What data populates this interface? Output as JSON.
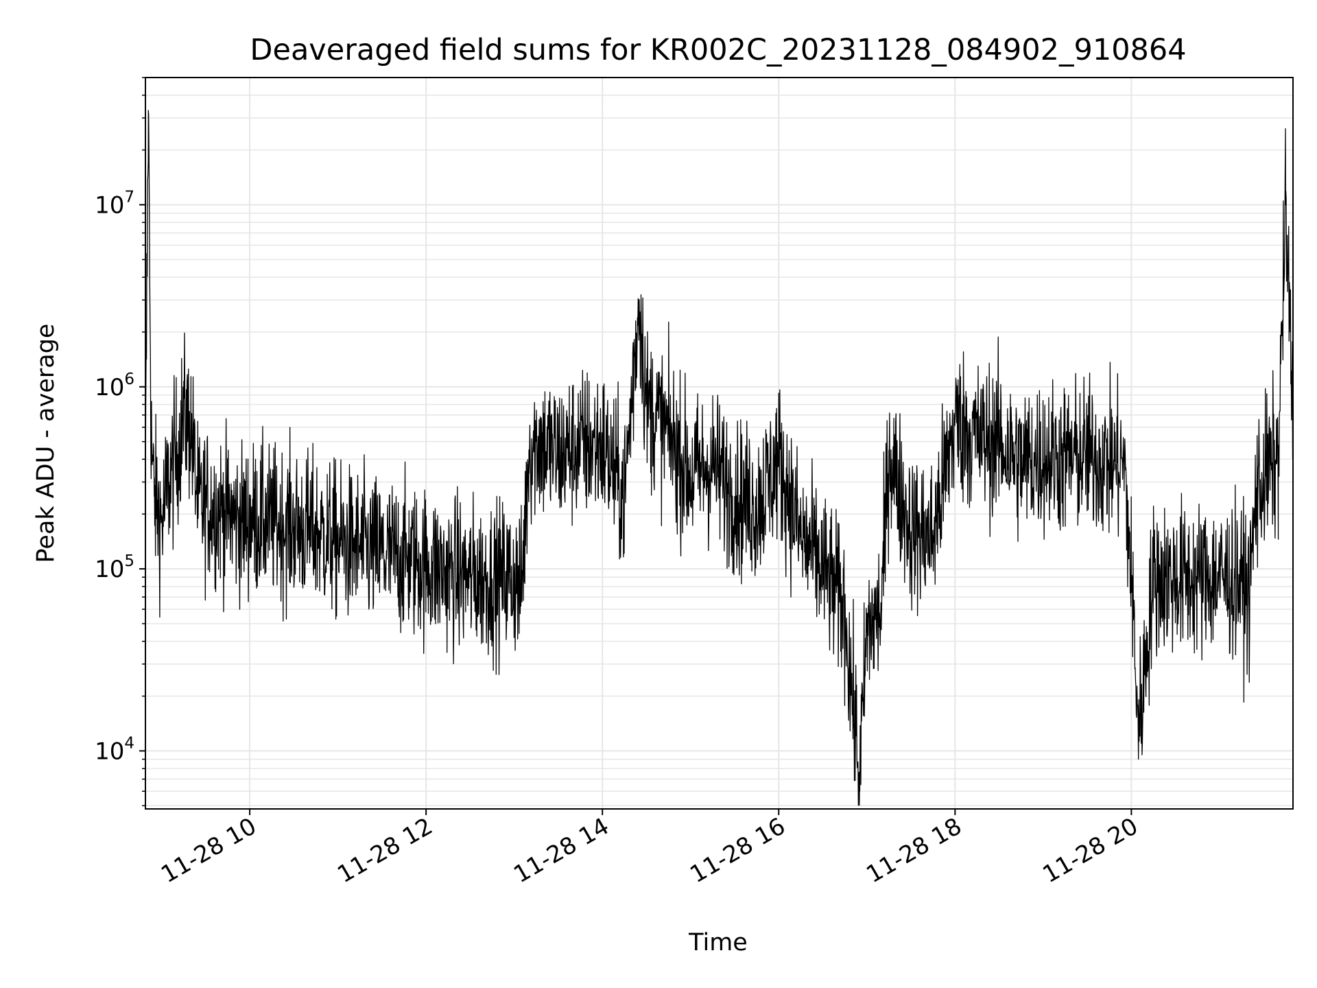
{
  "chart_data": {
    "type": "line",
    "title": "Deaveraged field sums for KR002C_20231128_084902_910864",
    "xlabel": "Time",
    "ylabel": "Peak ADU - average",
    "yscale": "log",
    "ylim": [
      4800,
      50000000
    ],
    "xlim": [
      "2023-11-28 08:49",
      "2023-11-28 21:50"
    ],
    "grid": true,
    "line_color": "#000000",
    "grid_color": "#e6e6e6",
    "x_ticks": [
      {
        "label": "11-28 10",
        "x": "2023-11-28 10:00"
      },
      {
        "label": "11-28 12",
        "x": "2023-11-28 12:00"
      },
      {
        "label": "11-28 14",
        "x": "2023-11-28 14:00"
      },
      {
        "label": "11-28 16",
        "x": "2023-11-28 16:00"
      },
      {
        "label": "11-28 18",
        "x": "2023-11-28 18:00"
      },
      {
        "label": "11-28 20",
        "x": "2023-11-28 20:00"
      }
    ],
    "y_ticks": [
      {
        "value": 10000,
        "base": "10",
        "exp": "4"
      },
      {
        "value": 100000,
        "base": "10",
        "exp": "5"
      },
      {
        "value": 1000000,
        "base": "10",
        "exp": "6"
      },
      {
        "value": 10000000,
        "base": "10",
        "exp": "7"
      }
    ],
    "series": [
      {
        "x": [
          "2023-11-28 08:49",
          "2023-11-28 08:51",
          "2023-11-28 08:53",
          "2023-11-28 08:55",
          "2023-11-28 09:00",
          "2023-11-28 09:05",
          "2023-11-28 09:10",
          "2023-11-28 09:15",
          "2023-11-28 09:20",
          "2023-11-28 09:25",
          "2023-11-28 09:30",
          "2023-11-28 09:35",
          "2023-11-28 09:40",
          "2023-11-28 09:45",
          "2023-11-28 09:50",
          "2023-11-28 09:55",
          "2023-11-28 10:00",
          "2023-11-28 10:15",
          "2023-11-28 10:30",
          "2023-11-28 10:45",
          "2023-11-28 11:00",
          "2023-11-28 11:15",
          "2023-11-28 11:30",
          "2023-11-28 11:45",
          "2023-11-28 12:00",
          "2023-11-28 12:15",
          "2023-11-28 12:30",
          "2023-11-28 12:45",
          "2023-11-28 13:00",
          "2023-11-28 13:05",
          "2023-11-28 13:10",
          "2023-11-28 13:15",
          "2023-11-28 13:30",
          "2023-11-28 13:45",
          "2023-11-28 14:00",
          "2023-11-28 14:15",
          "2023-11-28 14:25",
          "2023-11-28 14:30",
          "2023-11-28 14:45",
          "2023-11-28 15:00",
          "2023-11-28 15:15",
          "2023-11-28 15:30",
          "2023-11-28 15:45",
          "2023-11-28 16:00",
          "2023-11-28 16:15",
          "2023-11-28 16:30",
          "2023-11-28 16:45",
          "2023-11-28 16:55",
          "2023-11-28 17:00",
          "2023-11-28 17:10",
          "2023-11-28 17:15",
          "2023-11-28 17:30",
          "2023-11-28 17:45",
          "2023-11-28 18:00",
          "2023-11-28 18:15",
          "2023-11-28 18:30",
          "2023-11-28 18:45",
          "2023-11-28 19:00",
          "2023-11-28 19:15",
          "2023-11-28 19:30",
          "2023-11-28 19:45",
          "2023-11-28 19:55",
          "2023-11-28 20:00",
          "2023-11-28 20:05",
          "2023-11-28 20:15",
          "2023-11-28 20:30",
          "2023-11-28 20:45",
          "2023-11-28 21:00",
          "2023-11-28 21:15",
          "2023-11-28 21:20",
          "2023-11-28 21:25",
          "2023-11-28 21:30",
          "2023-11-28 21:40",
          "2023-11-28 21:45",
          "2023-11-28 21:50"
        ],
        "y": [
          300000,
          33000000,
          500000,
          250000,
          180000,
          300000,
          420000,
          700000,
          600000,
          220000,
          230000,
          220000,
          210000,
          200000,
          190000,
          180000,
          190000,
          180000,
          170000,
          160000,
          140000,
          130000,
          120000,
          115000,
          105000,
          95000,
          90000,
          88000,
          90000,
          75000,
          450000,
          500000,
          420000,
          480000,
          480000,
          250000,
          3000000,
          800000,
          550000,
          320000,
          380000,
          250000,
          220000,
          400000,
          150000,
          100000,
          60000,
          7000,
          45000,
          60000,
          450000,
          160000,
          150000,
          650000,
          520000,
          500000,
          380000,
          420000,
          400000,
          420000,
          380000,
          380000,
          90000,
          13000,
          90000,
          88000,
          88000,
          90000,
          85000,
          70000,
          260000,
          320000,
          400000,
          10000000,
          650000
        ]
      }
    ]
  }
}
